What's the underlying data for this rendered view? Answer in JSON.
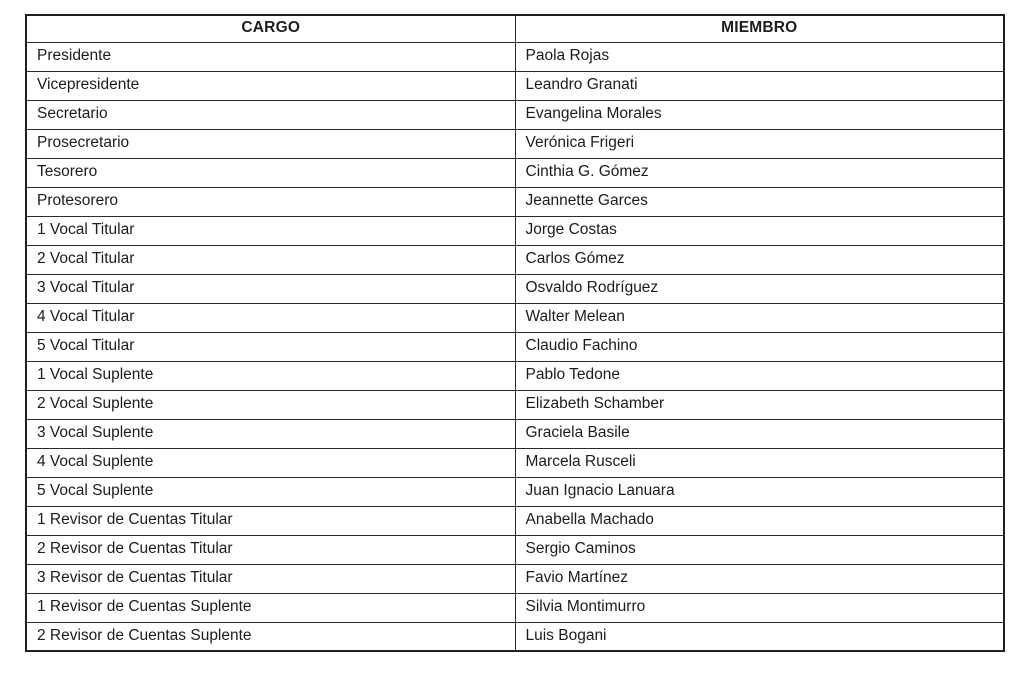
{
  "table": {
    "columns": [
      {
        "key": "cargo",
        "label": "CARGO"
      },
      {
        "key": "miembro",
        "label": "MIEMBRO"
      }
    ],
    "rows": [
      {
        "cargo": "Presidente",
        "miembro": "Paola Rojas"
      },
      {
        "cargo": "Vicepresidente",
        "miembro": "Leandro Granati"
      },
      {
        "cargo": "Secretario",
        "miembro": "Evangelina Morales"
      },
      {
        "cargo": "Prosecretario",
        "miembro": "Verónica Frigeri"
      },
      {
        "cargo": "Tesorero",
        "miembro": "Cinthia G. Gómez"
      },
      {
        "cargo": "Protesorero",
        "miembro": "Jeannette Garces"
      },
      {
        "cargo": "1 Vocal Titular",
        "miembro": "Jorge Costas"
      },
      {
        "cargo": "2 Vocal Titular",
        "miembro": "Carlos Gómez"
      },
      {
        "cargo": "3 Vocal Titular",
        "miembro": "Osvaldo Rodríguez"
      },
      {
        "cargo": "4 Vocal Titular",
        "miembro": "Walter Melean"
      },
      {
        "cargo": "5 Vocal Titular",
        "miembro": "Claudio Fachino"
      },
      {
        "cargo": "1 Vocal Suplente",
        "miembro": "Pablo Tedone"
      },
      {
        "cargo": "2 Vocal Suplente",
        "miembro": "Elizabeth Schamber"
      },
      {
        "cargo": "3 Vocal Suplente",
        "miembro": "Graciela Basile"
      },
      {
        "cargo": "4 Vocal Suplente",
        "miembro": "Marcela Rusceli"
      },
      {
        "cargo": "5 Vocal Suplente",
        "miembro": "Juan Ignacio Lanuara"
      },
      {
        "cargo": "1 Revisor de Cuentas Titular",
        "miembro": "Anabella Machado"
      },
      {
        "cargo": "2 Revisor de Cuentas Titular",
        "miembro": "Sergio Caminos"
      },
      {
        "cargo": "3 Revisor de Cuentas Titular",
        "miembro": "Favio Martínez"
      },
      {
        "cargo": "1 Revisor de Cuentas Suplente",
        "miembro": "Silvia Montimurro"
      },
      {
        "cargo": "2 Revisor de Cuentas Suplente",
        "miembro": "Luis Bogani"
      }
    ],
    "colors": {
      "border": "#1f1f1f",
      "text": "#1c1c1c",
      "background": "#ffffff"
    }
  }
}
